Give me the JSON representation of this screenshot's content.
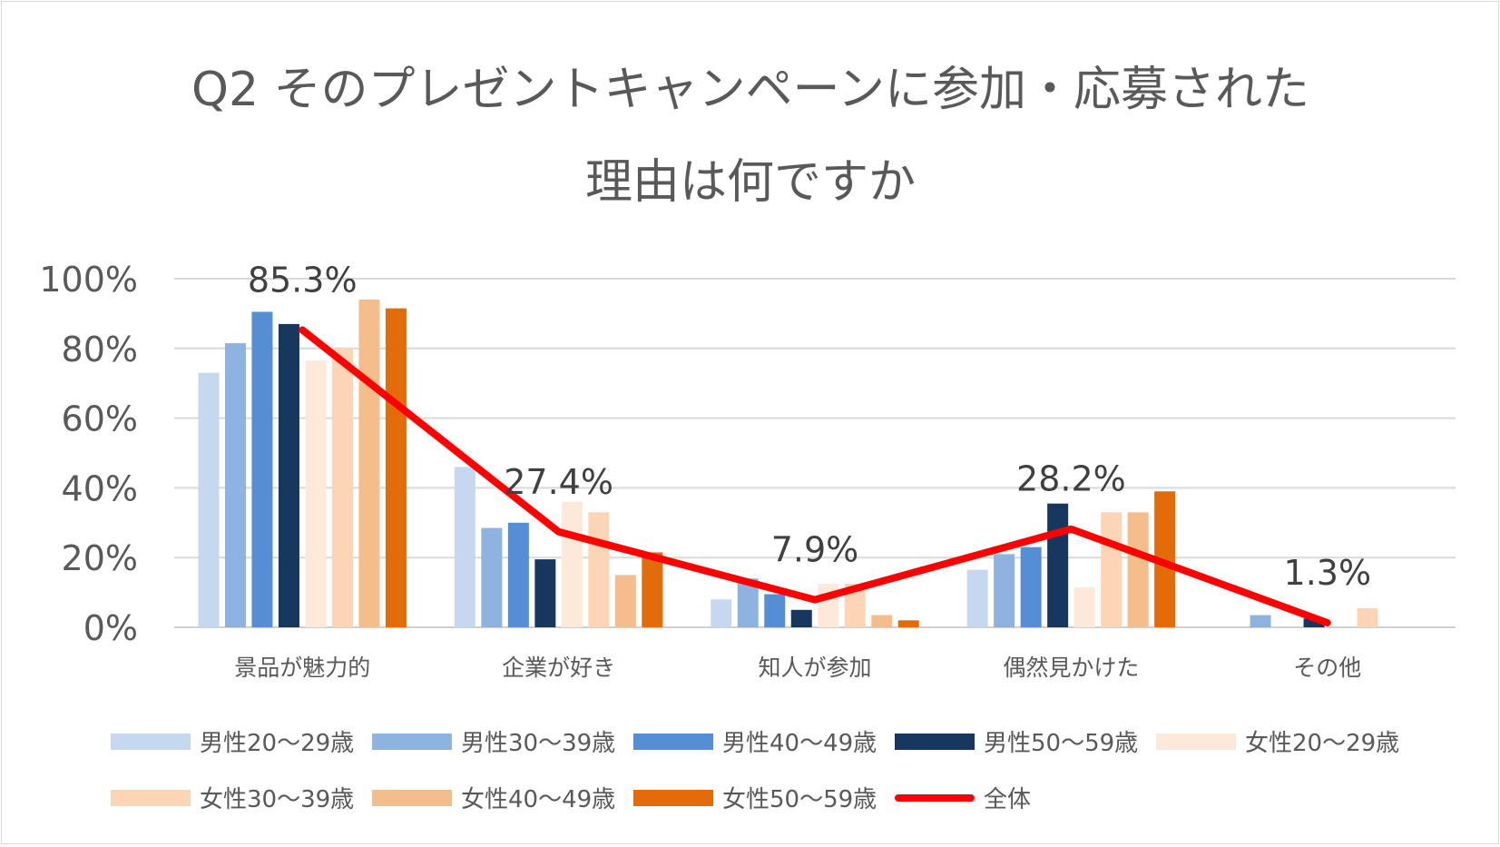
{
  "chart_data": {
    "type": "bar",
    "title_lines": [
      "Q2 そのプレゼントキャンペーンに参加・応募された",
      "理由は何ですか"
    ],
    "categories": [
      "景品が魅力的",
      "企業が好き",
      "知人が参加",
      "偶然見かけた",
      "その他"
    ],
    "ylim": [
      0,
      100
    ],
    "yticks": [
      "0%",
      "20%",
      "40%",
      "60%",
      "80%",
      "100%"
    ],
    "grid": true,
    "legend_position": "bottom",
    "series": [
      {
        "name": "男性20〜29歳",
        "color": "#c5d8ef",
        "values": [
          73,
          46,
          8,
          16.5,
          0
        ]
      },
      {
        "name": "男性30〜39歳",
        "color": "#8eb3e0",
        "values": [
          81.5,
          28.5,
          14,
          21,
          3.5
        ]
      },
      {
        "name": "男性40〜49歳",
        "color": "#558ed5",
        "values": [
          90.5,
          30,
          9.5,
          23,
          0
        ]
      },
      {
        "name": "男性50〜59歳",
        "color": "#17375e",
        "values": [
          87,
          19.5,
          5,
          35.5,
          2.5
        ]
      },
      {
        "name": "女性20〜29歳",
        "color": "#fde9d9",
        "values": [
          76.5,
          36,
          12.5,
          11.5,
          0
        ]
      },
      {
        "name": "女性30〜39歳",
        "color": "#fbd5b5",
        "values": [
          80,
          33,
          12.5,
          33,
          5.5
        ]
      },
      {
        "name": "女性40〜49歳",
        "color": "#f6bd8c",
        "values": [
          94,
          15,
          3.5,
          33,
          0
        ]
      },
      {
        "name": "女性50〜59歳",
        "color": "#e36c0a",
        "values": [
          91.5,
          21.5,
          2,
          39,
          0
        ]
      }
    ],
    "line_series": {
      "name": "全体",
      "color": "#ff0000",
      "values": [
        85.3,
        27.4,
        7.9,
        28.2,
        1.3
      ],
      "labels": [
        "85.3%",
        "27.4%",
        "7.9%",
        "28.2%",
        "1.3%"
      ]
    }
  }
}
